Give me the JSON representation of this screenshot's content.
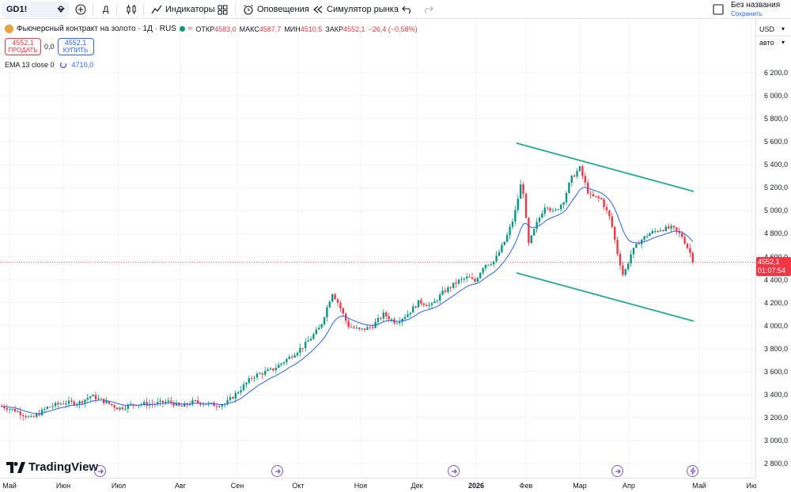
{
  "toolbar": {
    "symbol": "GD1!",
    "interval": "Д",
    "indicators": "Индикаторы",
    "alerts": "Оповещения",
    "replay": "Симулятор рынка",
    "layout_name": "Без названия",
    "save": "Сохранить"
  },
  "legend": {
    "title": "Фьючерсный контракт на золото · 1Д · RUS",
    "open_label": "ОТКР",
    "open": "4583,0",
    "high_label": "МАКС",
    "high": "4587,7",
    "low_label": "МИН",
    "low": "4510,5",
    "close_label": "ЗАКР",
    "close": "4552,1",
    "change": "−26,4 (−0,58%)",
    "sell_price": "4552,1",
    "sell_label": "ПРОДАТЬ",
    "spread": "0,0",
    "buy_price": "4552,1",
    "buy_label": "КУПИТЬ",
    "ema_label": "EMA 13 close 0",
    "ema_value": "4710,0"
  },
  "price_scale": {
    "currency": "USD",
    "mode": "авто",
    "ticks": [
      "6 200,0",
      "6 000,0",
      "5 800,0",
      "5 600,0",
      "5 400,0",
      "5 200,0",
      "5 000,0",
      "4 800,0",
      "4 600,0",
      "4 400,0",
      "4 200,0",
      "4 000,0",
      "3 800,0",
      "3 600,0",
      "3 400,0",
      "3 200,0",
      "3 000,0",
      "2 800,0"
    ],
    "last_price": "4552,1",
    "countdown": "01:07:54"
  },
  "time_scale": {
    "ticks": [
      "Май",
      "Июн",
      "Июл",
      "Авг",
      "Сен",
      "Окт",
      "Ноя",
      "Дек",
      "2026",
      "Фев",
      "Мар",
      "Апр",
      "Май",
      "Ию"
    ]
  },
  "brand": "TradingView",
  "colors": {
    "up": "#089981",
    "down": "#f23645",
    "ema": "#2962ff",
    "channel": "#22ab94"
  }
}
